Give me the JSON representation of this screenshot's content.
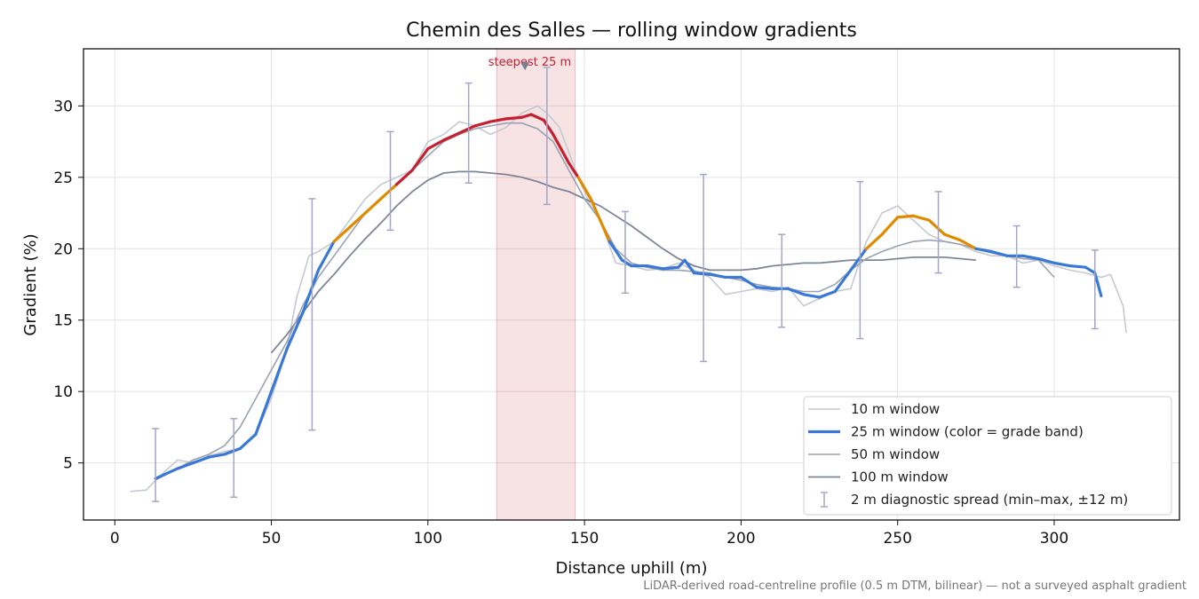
{
  "chart_data": {
    "type": "line",
    "title": "Chemin des Salles — rolling window gradients",
    "xlabel": "Distance uphill (m)",
    "ylabel": "Gradient (%)",
    "xlim": [
      -10,
      340
    ],
    "ylim": [
      1,
      34
    ],
    "xticks": [
      0,
      50,
      100,
      150,
      200,
      250,
      300
    ],
    "yticks": [
      5,
      10,
      15,
      20,
      25,
      30
    ],
    "grid": true,
    "legend_position": "lower right",
    "footnote": "LiDAR-derived road-centreline profile (0.5 m DTM, bilinear) — not a surveyed asphalt gradient",
    "highlight": {
      "label": "steepest 25 m",
      "x_start": 122,
      "x_end": 147,
      "peak_x": 131,
      "peak_y": 32.8,
      "color": "#c4202f"
    },
    "grade_band_colors": {
      "below_20": "#3a78d6",
      "20_to_25": "#e08a00",
      "above_25": "#c4202f"
    },
    "series": [
      {
        "name": "10 m window",
        "color": "#c4c9d4",
        "x": [
          5,
          10,
          15,
          20,
          25,
          30,
          35,
          40,
          45,
          50,
          55,
          58,
          62,
          65,
          70,
          75,
          80,
          85,
          90,
          95,
          100,
          105,
          110,
          115,
          120,
          125,
          130,
          135,
          138,
          142,
          148,
          152,
          155,
          160,
          165,
          170,
          175,
          180,
          185,
          190,
          195,
          200,
          205,
          210,
          215,
          220,
          225,
          230,
          235,
          240,
          245,
          250,
          255,
          260,
          265,
          270,
          275,
          280,
          285,
          290,
          295,
          300,
          305,
          310,
          315,
          318,
          322,
          323
        ],
        "y": [
          3.0,
          3.1,
          4.2,
          5.2,
          5.0,
          5.5,
          5.8,
          6.0,
          7.0,
          9.5,
          13.0,
          16.5,
          19.5,
          19.8,
          20.5,
          22.0,
          23.5,
          24.5,
          25.0,
          25.5,
          27.5,
          28.0,
          28.9,
          28.6,
          28.0,
          28.5,
          29.5,
          30.0,
          29.5,
          28.5,
          25.0,
          23.0,
          22.0,
          19.0,
          18.8,
          18.5,
          18.6,
          19.0,
          18.5,
          18.0,
          16.8,
          17.0,
          17.2,
          17.0,
          17.3,
          16.0,
          16.5,
          17.0,
          17.2,
          20.5,
          22.5,
          23.0,
          22.0,
          21.0,
          20.5,
          20.3,
          19.8,
          19.5,
          19.5,
          19.0,
          19.2,
          18.8,
          18.5,
          18.3,
          18.0,
          18.2,
          16.0,
          14.1
        ]
      },
      {
        "name": "25 m window (color = grade band)",
        "color": "#3a78d6",
        "x": [
          13,
          20,
          25,
          30,
          35,
          40,
          45,
          50,
          55,
          60,
          65,
          70,
          75,
          80,
          85,
          90,
          95,
          100,
          105,
          110,
          115,
          120,
          125,
          130,
          133,
          137,
          140,
          145,
          148,
          152,
          155,
          158,
          162,
          165,
          170,
          175,
          180,
          182,
          185,
          190,
          195,
          200,
          205,
          210,
          215,
          220,
          225,
          230,
          235,
          240,
          245,
          250,
          255,
          260,
          265,
          270,
          275,
          280,
          285,
          290,
          295,
          300,
          305,
          310,
          313,
          315
        ],
        "y": [
          3.9,
          4.6,
          5.0,
          5.4,
          5.6,
          6.0,
          7.0,
          10.0,
          13.0,
          15.5,
          18.5,
          20.5,
          21.5,
          22.5,
          23.5,
          24.5,
          25.5,
          27.0,
          27.6,
          28.1,
          28.6,
          28.9,
          29.1,
          29.2,
          29.4,
          29.0,
          28.0,
          26.0,
          25.0,
          23.5,
          22.0,
          20.5,
          19.2,
          18.8,
          18.8,
          18.6,
          18.7,
          19.2,
          18.3,
          18.2,
          18.0,
          18.0,
          17.3,
          17.2,
          17.2,
          16.8,
          16.6,
          17.0,
          18.5,
          20.0,
          21.0,
          22.2,
          22.3,
          22.0,
          21.0,
          20.6,
          20.0,
          19.8,
          19.5,
          19.5,
          19.3,
          19.0,
          18.8,
          18.7,
          18.3,
          16.7
        ]
      },
      {
        "name": "50 m window",
        "color": "#9aa2b1",
        "x": [
          13,
          20,
          25,
          30,
          35,
          40,
          45,
          50,
          55,
          60,
          65,
          70,
          75,
          80,
          85,
          90,
          95,
          100,
          105,
          110,
          115,
          120,
          125,
          130,
          135,
          140,
          145,
          150,
          155,
          160,
          165,
          170,
          175,
          180,
          185,
          190,
          195,
          200,
          205,
          210,
          215,
          220,
          225,
          230,
          235,
          240,
          245,
          250,
          255,
          260,
          265,
          270,
          275,
          280,
          285,
          290,
          295,
          300
        ],
        "y": [
          3.8,
          4.6,
          5.2,
          5.6,
          6.2,
          7.5,
          9.5,
          11.5,
          13.5,
          16.0,
          18.0,
          19.5,
          21.0,
          22.5,
          23.5,
          24.5,
          25.5,
          26.5,
          27.5,
          28.0,
          28.4,
          28.6,
          28.8,
          28.8,
          28.4,
          27.5,
          25.5,
          23.5,
          22.0,
          20.0,
          19.0,
          18.7,
          18.5,
          18.5,
          18.4,
          18.3,
          18.0,
          17.8,
          17.5,
          17.3,
          17.2,
          17.0,
          17.0,
          17.5,
          18.5,
          19.3,
          19.8,
          20.2,
          20.5,
          20.6,
          20.5,
          20.3,
          20.0,
          19.7,
          19.5,
          19.3,
          19.2,
          18.0
        ]
      },
      {
        "name": "100 m window",
        "color": "#7e8595",
        "x": [
          50,
          55,
          60,
          65,
          70,
          75,
          80,
          85,
          90,
          95,
          100,
          105,
          110,
          115,
          120,
          125,
          130,
          135,
          140,
          145,
          150,
          155,
          160,
          165,
          170,
          175,
          180,
          185,
          190,
          195,
          200,
          205,
          210,
          215,
          220,
          225,
          230,
          235,
          240,
          245,
          250,
          255,
          260,
          265,
          270,
          275
        ],
        "y": [
          12.7,
          14.0,
          15.5,
          17.0,
          18.2,
          19.5,
          20.7,
          21.8,
          23.0,
          24.0,
          24.8,
          25.3,
          25.4,
          25.4,
          25.3,
          25.2,
          25.0,
          24.7,
          24.3,
          24.0,
          23.5,
          23.0,
          22.3,
          21.6,
          20.8,
          20.0,
          19.3,
          18.8,
          18.5,
          18.5,
          18.5,
          18.6,
          18.8,
          18.9,
          19.0,
          19.0,
          19.1,
          19.2,
          19.2,
          19.2,
          19.3,
          19.4,
          19.4,
          19.4,
          19.3,
          19.2
        ]
      }
    ],
    "diagnostic_spread": {
      "name": "2 m diagnostic spread (min–max, ±12 m)",
      "color": "#a3a5c9",
      "points": [
        {
          "x": 13,
          "min": 2.3,
          "max": 7.4
        },
        {
          "x": 38,
          "min": 2.6,
          "max": 8.1
        },
        {
          "x": 63,
          "min": 7.3,
          "max": 23.5
        },
        {
          "x": 88,
          "min": 21.3,
          "max": 28.2
        },
        {
          "x": 113,
          "min": 24.6,
          "max": 31.6
        },
        {
          "x": 138,
          "min": 23.1,
          "max": 32.7
        },
        {
          "x": 163,
          "min": 16.9,
          "max": 22.6
        },
        {
          "x": 188,
          "min": 12.1,
          "max": 25.2
        },
        {
          "x": 213,
          "min": 14.5,
          "max": 21.0
        },
        {
          "x": 238,
          "min": 13.7,
          "max": 24.7
        },
        {
          "x": 263,
          "min": 18.3,
          "max": 24.0
        },
        {
          "x": 288,
          "min": 17.3,
          "max": 21.6
        },
        {
          "x": 313,
          "min": 14.4,
          "max": 19.9
        }
      ]
    }
  }
}
